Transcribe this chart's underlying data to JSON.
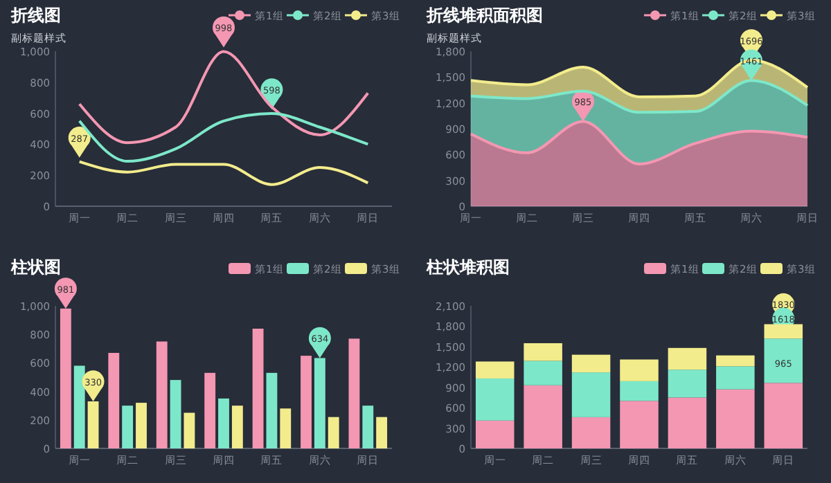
{
  "chart_data": [
    {
      "type": "line",
      "title": "折线图",
      "subtitle": "副标题样式",
      "categories": [
        "周一",
        "周二",
        "周三",
        "周四",
        "周五",
        "周六",
        "周日"
      ],
      "ylim": [
        0,
        1000
      ],
      "yticks": [
        0,
        200,
        400,
        600,
        800,
        {
          "value": 1000,
          "label": "1,000"
        }
      ],
      "legend": "top right",
      "marker": "none",
      "series": [
        {
          "name": "第1组",
          "color": "#f497b2",
          "values": [
            660,
            410,
            510,
            998,
            640,
            460,
            730
          ],
          "value_labels": [
            null,
            null,
            null,
            "998",
            null,
            null,
            null
          ]
        },
        {
          "name": "第2组",
          "color": "#7de8c9",
          "values": [
            550,
            290,
            370,
            550,
            598,
            510,
            400
          ],
          "value_labels": [
            null,
            null,
            null,
            null,
            "598",
            null,
            null
          ]
        },
        {
          "name": "第3组",
          "color": "#f3ec8c",
          "values": [
            287,
            220,
            270,
            270,
            140,
            250,
            150
          ],
          "value_labels": [
            "287",
            null,
            null,
            null,
            null,
            null,
            null
          ]
        }
      ]
    },
    {
      "type": "area",
      "stacked": true,
      "title": "折线堆积面积图",
      "subtitle": "副标题样式",
      "categories": [
        "周一",
        "周二",
        "周三",
        "周四",
        "周五",
        "周六",
        "周日"
      ],
      "ylim": [
        0,
        1800
      ],
      "yticks": [
        0,
        300,
        600,
        900,
        {
          "value": 1200,
          "label": "1,200"
        },
        {
          "value": 1500,
          "label": "1,500"
        },
        {
          "value": 1800,
          "label": "1,800"
        }
      ],
      "legend": "top right",
      "marker": "none",
      "series": [
        {
          "name": "第1组",
          "color": "#f497b2",
          "values": [
            840,
            620,
            985,
            490,
            730,
            872,
            800
          ]
        },
        {
          "name": "第2组",
          "color": "#7de8c9",
          "values": [
            440,
            630,
            350,
            600,
            370,
            589,
            370
          ]
        },
        {
          "name": "第3组",
          "color": "#f3ec8c",
          "values": [
            180,
            160,
            280,
            180,
            180,
            235,
            210
          ]
        }
      ],
      "annotations": [
        {
          "text": "985",
          "x": "周三",
          "y": 985
        },
        {
          "text": "1461",
          "x": "周六",
          "y": 1461
        },
        {
          "text": "1696",
          "x": "周六",
          "y": 1696
        }
      ]
    },
    {
      "type": "bar",
      "title": "柱状图",
      "categories": [
        "周一",
        "周二",
        "周三",
        "周四",
        "周五",
        "周六",
        "周日"
      ],
      "ylim": [
        0,
        1000
      ],
      "yticks": [
        0,
        200,
        400,
        600,
        800,
        {
          "value": 1000,
          "label": "1,000"
        }
      ],
      "legend": "top right",
      "series": [
        {
          "name": "第1组",
          "color": "#f497b2",
          "values": [
            981,
            670,
            750,
            530,
            840,
            650,
            770
          ],
          "value_labels": [
            "981",
            null,
            null,
            null,
            null,
            null,
            null
          ]
        },
        {
          "name": "第2组",
          "color": "#7de8c9",
          "values": [
            580,
            300,
            480,
            350,
            530,
            634,
            300
          ],
          "value_labels": [
            null,
            null,
            null,
            null,
            null,
            "634",
            null
          ]
        },
        {
          "name": "第3组",
          "color": "#f3ec8c",
          "values": [
            330,
            320,
            250,
            300,
            280,
            220,
            220
          ],
          "value_labels": [
            "330",
            null,
            null,
            null,
            null,
            null,
            null
          ]
        }
      ]
    },
    {
      "type": "bar",
      "stacked": true,
      "title": "柱状堆积图",
      "categories": [
        "周一",
        "周二",
        "周三",
        "周四",
        "周五",
        "周六",
        "周日"
      ],
      "ylim": [
        0,
        2100
      ],
      "yticks": [
        0,
        300,
        600,
        900,
        {
          "value": 1200,
          "label": "1,200"
        },
        {
          "value": 1500,
          "label": "1,500"
        },
        {
          "value": 1800,
          "label": "1,800"
        },
        {
          "value": 2100,
          "label": "2,100"
        }
      ],
      "legend": "top right",
      "series": [
        {
          "name": "第1组",
          "color": "#f497b2",
          "values": [
            410,
            930,
            460,
            700,
            750,
            870,
            965
          ]
        },
        {
          "name": "第2组",
          "color": "#7de8c9",
          "values": [
            620,
            360,
            660,
            290,
            410,
            340,
            653
          ]
        },
        {
          "name": "第3组",
          "color": "#f3ec8c",
          "values": [
            250,
            260,
            260,
            320,
            320,
            160,
            212
          ]
        }
      ],
      "annotations": [
        {
          "text": "965",
          "x": "周日",
          "y": 965
        },
        {
          "text": "1618",
          "x": "周日",
          "y": 1618
        },
        {
          "text": "1830",
          "x": "周日",
          "y": 1830
        }
      ]
    }
  ]
}
